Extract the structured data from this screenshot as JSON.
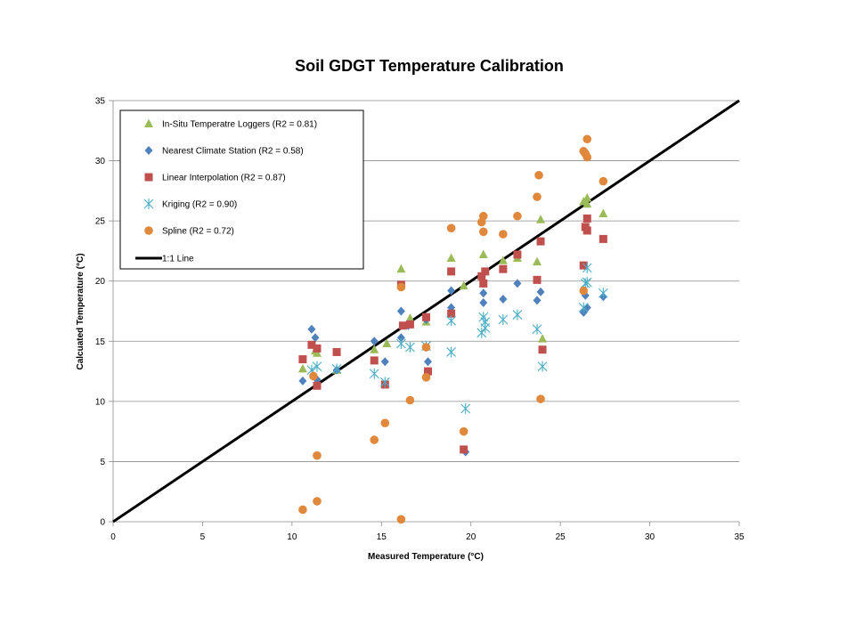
{
  "chart_data": {
    "type": "scatter",
    "title": "Soil GDGT Temperature Calibration",
    "xlabel": "Measured Temperature (°C)",
    "ylabel": "Calcuated Temperature (°C)",
    "xlim": [
      0,
      35
    ],
    "ylim": [
      0,
      35
    ],
    "xticks": [
      "0",
      "5",
      "10",
      "15",
      "20",
      "25",
      "30",
      "35"
    ],
    "yticks": [
      "0",
      "5",
      "10",
      "15",
      "20",
      "25",
      "30",
      "35"
    ],
    "grid": "horizontal",
    "legend_position": "top-left",
    "series": [
      {
        "name": "In-Situ Temperatre Loggers (R2 = 0.81)",
        "marker": "triangle",
        "color": "#9BBB59",
        "x": [
          10.6,
          11.3,
          11.4,
          12.5,
          14.6,
          15.3,
          16.1,
          16.6,
          17.5,
          18.9,
          19.6,
          20.7,
          21.8,
          22.6,
          23.7,
          23.9,
          24.0,
          26.3,
          26.5,
          26.5,
          27.4
        ],
        "y": [
          12.7,
          14.2,
          14.0,
          12.6,
          14.3,
          14.8,
          21.0,
          16.9,
          16.6,
          21.9,
          19.6,
          22.2,
          21.7,
          21.9,
          21.6,
          25.1,
          15.2,
          26.6,
          26.9,
          26.4,
          25.6
        ]
      },
      {
        "name": "Nearest Climate Station (R2 = 0.58)",
        "marker": "diamond",
        "color": "#4F81BD",
        "x": [
          10.6,
          11.1,
          11.3,
          11.4,
          12.5,
          14.6,
          15.2,
          16.1,
          16.1,
          16.5,
          17.5,
          17.6,
          18.9,
          18.9,
          19.7,
          20.7,
          20.7,
          21.8,
          22.6,
          23.7,
          23.9,
          26.3,
          26.4,
          26.5,
          27.4
        ],
        "y": [
          11.7,
          16.0,
          15.3,
          11.8,
          12.6,
          15.0,
          13.3,
          17.5,
          15.3,
          16.3,
          16.8,
          13.3,
          19.2,
          17.8,
          5.8,
          18.2,
          19.0,
          18.5,
          19.8,
          18.4,
          19.1,
          17.4,
          18.8,
          17.8,
          18.7
        ]
      },
      {
        "name": "Linear Interpolation (R2 = 0.87)",
        "marker": "square",
        "color": "#C0504D",
        "x": [
          10.6,
          11.1,
          11.4,
          11.4,
          12.5,
          14.6,
          15.2,
          16.1,
          16.2,
          16.6,
          17.5,
          17.6,
          18.9,
          18.9,
          19.6,
          20.6,
          20.7,
          20.8,
          21.8,
          22.6,
          23.7,
          23.9,
          24.0,
          26.3,
          26.4,
          26.5,
          26.5,
          27.4
        ],
        "y": [
          13.5,
          14.7,
          14.4,
          11.3,
          14.1,
          13.4,
          11.4,
          19.7,
          16.3,
          16.4,
          17.0,
          12.5,
          20.8,
          17.3,
          6.0,
          20.4,
          19.8,
          20.8,
          21.0,
          22.2,
          20.1,
          23.3,
          14.3,
          21.3,
          24.5,
          25.2,
          24.2,
          23.5
        ]
      },
      {
        "name": "Kriging (R2 = 0.90)",
        "marker": "asterisk",
        "color": "#4BACC6",
        "x": [
          11.1,
          11.4,
          12.5,
          14.6,
          15.2,
          16.1,
          16.6,
          17.5,
          18.9,
          18.9,
          19.7,
          20.6,
          20.7,
          20.8,
          20.8,
          21.8,
          22.6,
          23.7,
          24.0,
          26.3,
          26.4,
          26.5,
          26.5,
          27.4
        ],
        "y": [
          12.6,
          12.9,
          12.7,
          12.3,
          11.6,
          14.8,
          14.5,
          14.6,
          14.1,
          16.7,
          9.4,
          15.7,
          17.0,
          16.1,
          16.6,
          16.8,
          17.2,
          16.0,
          12.9,
          17.8,
          19.8,
          21.1,
          19.9,
          19.0
        ]
      },
      {
        "name": "Spline (R2 = 0.72)",
        "marker": "circle",
        "color": "#E0883C",
        "x": [
          10.6,
          11.4,
          11.4,
          11.2,
          14.6,
          15.2,
          16.1,
          16.1,
          16.6,
          17.5,
          17.5,
          18.9,
          19.6,
          20.6,
          20.7,
          20.7,
          21.8,
          22.6,
          23.7,
          23.8,
          23.9,
          26.3,
          26.4,
          26.5,
          26.5,
          27.4,
          26.3
        ],
        "y": [
          1.0,
          5.5,
          1.7,
          12.1,
          6.8,
          8.2,
          19.5,
          0.2,
          10.1,
          14.5,
          12.0,
          24.4,
          7.5,
          24.9,
          25.4,
          24.1,
          23.9,
          25.4,
          27.0,
          28.8,
          10.2,
          30.8,
          30.6,
          31.8,
          30.3,
          28.3,
          19.2
        ]
      }
    ],
    "reference_line": {
      "name": "1:1 Line",
      "color": "#000000",
      "x": [
        0,
        35
      ],
      "y": [
        0,
        35
      ]
    }
  }
}
